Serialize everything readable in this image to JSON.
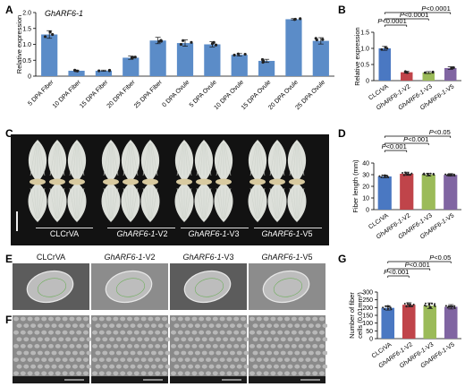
{
  "panels": {
    "A": "A",
    "B": "B",
    "C": "C",
    "D": "D",
    "E": "E",
    "F": "F",
    "G": "G"
  },
  "panel_a": {
    "gene_label": "GhARF6-1"
  },
  "panel_c": {
    "groups": [
      {
        "label": "CLCrVA"
      },
      {
        "label_it": "GhARF6-1",
        "label_suffix": "-V2"
      },
      {
        "label_it": "GhARF6-1",
        "label_suffix": "-V3"
      },
      {
        "label_it": "GhARF6-1",
        "label_suffix": "-V5"
      }
    ]
  },
  "panel_e": {
    "captions": [
      {
        "plain": "CLCrVA",
        "it": "",
        "suffix": ""
      },
      {
        "plain": "",
        "it": "GhARF6-1",
        "suffix": "-V2"
      },
      {
        "plain": "",
        "it": "GhARF6-1",
        "suffix": "-V3"
      },
      {
        "plain": "",
        "it": "GhARF6-1",
        "suffix": "-V5"
      }
    ]
  },
  "colors": {
    "bar_blue": "#5b8cc8",
    "clcrva": "#4a78c2",
    "v2": "#c0444a",
    "v3": "#9bbb59",
    "v5": "#8065a2",
    "photo_bg": "#111111",
    "fiber": "#e9ece6",
    "sem": "#8a8a8a"
  },
  "chart_data": [
    {
      "id": "A",
      "type": "bar",
      "ylabel": "Relative expression",
      "ylim": [
        0,
        2.0
      ],
      "yticks": [
        "0",
        "0.5",
        "1.0",
        "1.5",
        "2.0"
      ],
      "categories": [
        "5 DPA Fiber",
        "10 DPA Fiber",
        "15 DPA Fiber",
        "20 DPA Fiber",
        "25 DPA Fiber",
        "0 DPA Ovule",
        "5 DPA Ovule",
        "10 DPA Ovule",
        "15 DPA Ovule",
        "20 DPA Ovule",
        "25 DPA Ovule"
      ],
      "values": [
        1.31,
        0.17,
        0.17,
        0.58,
        1.12,
        1.04,
        1.0,
        0.67,
        0.48,
        1.79,
        1.11
      ],
      "errors": [
        0.12,
        0.02,
        0.02,
        0.05,
        0.1,
        0.1,
        0.08,
        0.04,
        0.05,
        0.02,
        0.1
      ]
    },
    {
      "id": "B",
      "type": "bar",
      "ylabel": "Relative expression",
      "ylim": [
        0,
        1.5
      ],
      "yticks": [
        "0",
        "0.5",
        "1.0",
        "1.5"
      ],
      "categories": [
        "CLCrVA",
        "GhARF6-1-V2",
        "GhARF6-1-V3",
        "GhARF6-1-V5"
      ],
      "values": [
        1.0,
        0.26,
        0.25,
        0.39
      ],
      "errors": [
        0.06,
        0.03,
        0.03,
        0.04
      ],
      "sig": [
        "P<0.0001",
        "P<0.0001",
        "P<0.0001"
      ]
    },
    {
      "id": "D",
      "type": "bar",
      "ylabel": "Fiber length (mm)",
      "ylim": [
        0,
        40
      ],
      "yticks": [
        "0",
        "10",
        "20",
        "30",
        "40"
      ],
      "categories": [
        "CLCrVA",
        "GhARF6-1-V2",
        "GhARF6-1-V3",
        "GhARF6-1-V5"
      ],
      "values": [
        28.5,
        30.8,
        30.1,
        29.8
      ],
      "errors": [
        1.2,
        1.4,
        1.2,
        1.1
      ],
      "sig": [
        "P<0.001",
        "P<0.001",
        "P<0.05"
      ]
    },
    {
      "id": "G",
      "type": "bar",
      "ylabel": "Number of fiber cells (0.01mm²)",
      "ylim": [
        0,
        300
      ],
      "yticks": [
        "0",
        "50",
        "100",
        "150",
        "200",
        "250",
        "300"
      ],
      "categories": [
        "CLCrVA",
        "GhARF6-1-V2",
        "GhARF6-1-V3",
        "GhARF6-1-V5"
      ],
      "values": [
        198,
        218,
        212,
        205
      ],
      "errors": [
        14,
        13,
        18,
        14
      ],
      "sig": [
        "P<0.001",
        "P<0.001",
        "P<0.05"
      ]
    }
  ]
}
